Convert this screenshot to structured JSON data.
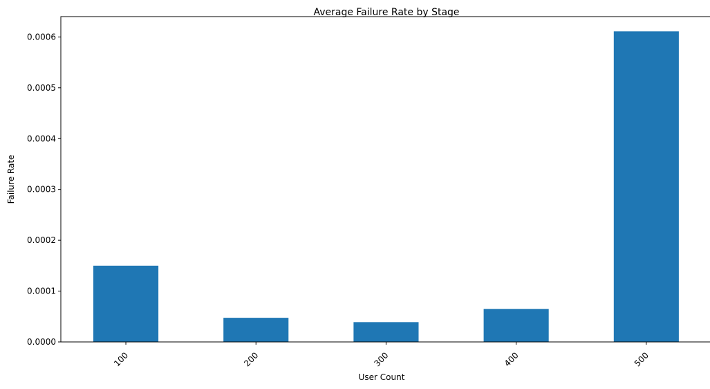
{
  "chart_data": {
    "type": "bar",
    "title": "Average Failure Rate by Stage",
    "xlabel": "User Count",
    "ylabel": "Failure Rate",
    "categories": [
      "100",
      "200",
      "300",
      "400",
      "500"
    ],
    "values": [
      0.00015,
      4.75e-05,
      3.9e-05,
      6.5e-05,
      0.000611
    ],
    "ylim": [
      0,
      0.00064
    ],
    "yticks": [
      0,
      0.0001,
      0.0002,
      0.0003,
      0.0004,
      0.0005,
      0.0006
    ],
    "ytick_labels": [
      "0.0000",
      "0.0001",
      "0.0002",
      "0.0003",
      "0.0004",
      "0.0005",
      "0.0006"
    ],
    "xtick_rotation": 45,
    "grid": false,
    "legend": false,
    "bar_color": "#1f77b4"
  }
}
